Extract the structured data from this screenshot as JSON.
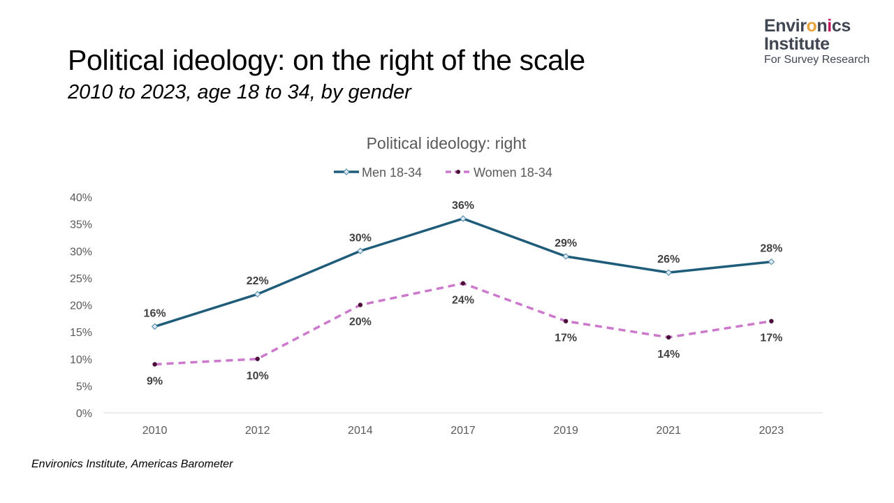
{
  "slide": {
    "title": "Political ideology: on the right of the scale",
    "subtitle": "2010 to 2023, age 18 to 34, by gender",
    "source": "Environics Institute, Americas Barometer"
  },
  "logo": {
    "line1_prefix": "Envir",
    "line1_o": "o",
    "line1_n": "n",
    "line1_i": "i",
    "line1_suffix": "cs",
    "line2": "Institute",
    "line3": "For Survey Research"
  },
  "chart_data": {
    "type": "line",
    "title": "Political ideology: right",
    "categories": [
      "2010",
      "2012",
      "2014",
      "2017",
      "2019",
      "2021",
      "2023"
    ],
    "series": [
      {
        "name": "Men 18-34",
        "values": [
          16,
          22,
          30,
          36,
          29,
          26,
          28
        ],
        "labels": [
          "16%",
          "22%",
          "30%",
          "36%",
          "29%",
          "26%",
          "28%"
        ],
        "color": "#1f5c7a",
        "marker": "diamond",
        "line_style": "solid",
        "label_position": "above"
      },
      {
        "name": "Women 18-34",
        "values": [
          9,
          10,
          20,
          24,
          17,
          14,
          17
        ],
        "labels": [
          "9%",
          "10%",
          "20%",
          "24%",
          "17%",
          "14%",
          "17%"
        ],
        "color": "#cc79cc",
        "marker_color": "#4b0f3a",
        "marker": "circle",
        "line_style": "dashed",
        "label_position": "below"
      }
    ],
    "ylim": [
      0,
      40
    ],
    "yticks": [
      0,
      5,
      10,
      15,
      20,
      25,
      30,
      35,
      40
    ],
    "ytick_labels": [
      "0%",
      "5%",
      "10%",
      "15%",
      "20%",
      "25%",
      "30%",
      "35%",
      "40%"
    ],
    "xlabel": "",
    "ylabel": "",
    "grid": false,
    "legend_position": "top"
  }
}
